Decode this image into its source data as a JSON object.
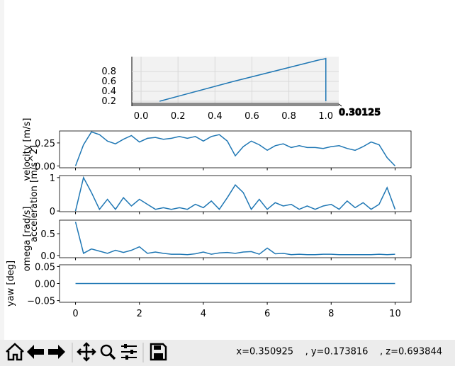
{
  "window": {
    "status": "x=0.350925    , y=0.173816    , z=0.693844"
  },
  "chart_data": [
    {
      "type": "line3d",
      "color": "#1f77b4",
      "x": [
        0.1,
        0.5,
        0.96,
        1.0,
        1.0,
        1.0
      ],
      "z": [
        0.2,
        0.6,
        1.03,
        1.06,
        0.6,
        0.2
      ],
      "xlim": [
        -0.05,
        1.07
      ],
      "zlim": [
        0.1,
        1.1
      ],
      "xticks": [
        {
          "value": 0,
          "label": "0.0"
        },
        0.2,
        0.4,
        0.6,
        0.8,
        {
          "value": 1,
          "label": "1.0"
        }
      ],
      "zticks": [
        0.2,
        0.4,
        0.6,
        0.8
      ],
      "yticks": [
        0.30125
      ]
    },
    {
      "type": "line",
      "ylabel": "velocity [m/s]",
      "color": "#1f77b4",
      "x": [
        0,
        0.25,
        0.5,
        0.75,
        1,
        1.25,
        1.5,
        1.75,
        2,
        2.25,
        2.5,
        2.75,
        3,
        3.25,
        3.5,
        3.75,
        4,
        4.25,
        4.5,
        4.75,
        5,
        5.25,
        5.5,
        5.75,
        6,
        6.25,
        6.5,
        6.75,
        7,
        7.25,
        7.5,
        7.75,
        8,
        8.25,
        8.5,
        8.75,
        9,
        9.25,
        9.5,
        9.75,
        10
      ],
      "values": [
        0,
        0.23,
        0.37,
        0.34,
        0.27,
        0.24,
        0.29,
        0.33,
        0.26,
        0.3,
        0.31,
        0.29,
        0.3,
        0.32,
        0.3,
        0.32,
        0.27,
        0.32,
        0.34,
        0.27,
        0.11,
        0.21,
        0.27,
        0.23,
        0.17,
        0.22,
        0.24,
        0.2,
        0.22,
        0.2,
        0.2,
        0.19,
        0.21,
        0.22,
        0.19,
        0.17,
        0.21,
        0.26,
        0.23,
        0.09,
        0
      ],
      "xlim": [
        -0.5,
        10.5
      ],
      "ylim": [
        -0.02,
        0.38
      ],
      "yticks": [
        {
          "value": 0,
          "label": "0.00"
        },
        0.25
      ]
    },
    {
      "type": "line",
      "ylabel": "acceleration [m/s^2]",
      "color": "#1f77b4",
      "x": [
        0,
        0.25,
        0.5,
        0.75,
        1,
        1.25,
        1.5,
        1.75,
        2,
        2.25,
        2.5,
        2.75,
        3,
        3.25,
        3.5,
        3.75,
        4,
        4.25,
        4.5,
        4.75,
        5,
        5.25,
        5.5,
        5.75,
        6,
        6.25,
        6.5,
        6.75,
        7,
        7.25,
        7.5,
        7.75,
        8,
        8.25,
        8.5,
        8.75,
        9,
        9.25,
        9.5,
        9.75,
        10
      ],
      "values": [
        0,
        1.0,
        0.55,
        0.05,
        0.35,
        0.05,
        0.4,
        0.15,
        0.35,
        0.2,
        0.05,
        0.1,
        0.05,
        0.1,
        0.05,
        0.2,
        0.1,
        0.3,
        0.05,
        0.4,
        0.78,
        0.55,
        0.05,
        0.35,
        0.05,
        0.25,
        0.15,
        0.2,
        0.05,
        0.15,
        0.05,
        0.15,
        0.2,
        0.05,
        0.3,
        0.1,
        0.25,
        0.05,
        0.2,
        0.7,
        0.05
      ],
      "xlim": [
        -0.5,
        10.5
      ],
      "ylim": [
        -0.02,
        1.06
      ],
      "yticks": [
        0,
        1
      ]
    },
    {
      "type": "line",
      "ylabel": "omega [rad/s]",
      "color": "#1f77b4",
      "x": [
        0,
        0.25,
        0.5,
        0.75,
        1,
        1.25,
        1.5,
        1.75,
        2,
        2.25,
        2.5,
        2.75,
        3,
        3.25,
        3.5,
        3.75,
        4,
        4.25,
        4.5,
        4.75,
        5,
        5.25,
        5.5,
        5.75,
        6,
        6.25,
        6.5,
        6.75,
        7,
        7.25,
        7.5,
        7.75,
        8,
        8.25,
        8.5,
        8.75,
        9,
        9.25,
        9.5,
        9.75,
        10
      ],
      "values": [
        0.77,
        0.05,
        0.15,
        0.1,
        0.05,
        0.12,
        0.07,
        0.12,
        0.2,
        0.05,
        0.08,
        0.05,
        0.03,
        0.03,
        0.02,
        0.04,
        0.08,
        0.03,
        0.06,
        0.07,
        0.05,
        0.08,
        0.09,
        0.03,
        0.17,
        0.04,
        0.05,
        0.02,
        0.03,
        0.02,
        0.02,
        0.03,
        0.03,
        0.02,
        0.02,
        0.02,
        0.02,
        0.02,
        0.03,
        0.02,
        0.03
      ],
      "xlim": [
        -0.5,
        10.5
      ],
      "ylim": [
        -0.05,
        0.81
      ],
      "yticks": [
        {
          "value": 0,
          "label": "0.0"
        },
        0.5
      ]
    },
    {
      "type": "line",
      "ylabel": "yaw [deg]",
      "color": "#1f77b4",
      "x": [
        0,
        10
      ],
      "values": [
        0,
        0
      ],
      "xlim": [
        -0.5,
        10.5
      ],
      "ylim": [
        -0.055,
        0.055
      ],
      "yticks": [
        {
          "value": -0.05,
          "label": "−0.05"
        },
        {
          "value": 0,
          "label": "0.00"
        },
        0.05
      ],
      "xticks": [
        0,
        2,
        4,
        6,
        8,
        10
      ]
    }
  ]
}
